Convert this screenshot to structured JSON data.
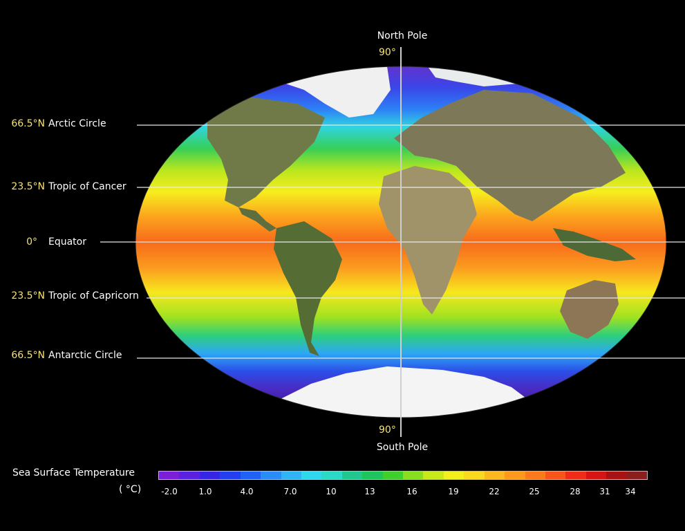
{
  "poles": {
    "north_label": "North Pole",
    "north_degree": "90°",
    "south_label": "South Pole",
    "south_degree": "90°"
  },
  "latitudes": [
    {
      "value": "66.5°N",
      "name": "Arctic Circle"
    },
    {
      "value": "23.5°N",
      "name": "Tropic of Cancer"
    },
    {
      "value": "0°",
      "name": "Equator"
    },
    {
      "value": "23.5°N",
      "name": "Tropic of Capricorn"
    },
    {
      "value": "66.5°N",
      "name": "Antarctic Circle"
    }
  ],
  "legend": {
    "title": "Sea Surface Temperature",
    "unit": "( °C)",
    "ticks": [
      "-2.0",
      "1.0",
      "4.0",
      "7.0",
      "10",
      "13",
      "16",
      "19",
      "22",
      "25",
      "28",
      "31",
      "34"
    ],
    "colors": [
      "#7a1fd6",
      "#5a22e0",
      "#3526e6",
      "#2340f0",
      "#1f62f5",
      "#2a8cf8",
      "#30b4f5",
      "#30d8ef",
      "#2ad9c6",
      "#20c890",
      "#1ec45c",
      "#3ecf2c",
      "#88df20",
      "#c6ea1c",
      "#f2f11e",
      "#fbd920",
      "#fdb820",
      "#fd9a1e",
      "#fb7a1c",
      "#f6561a",
      "#ee2c18",
      "#d61414",
      "#a81212",
      "#8a1e1e"
    ]
  },
  "colors": {
    "background": "#000000",
    "latitude_value": "#f5e27a",
    "ice": "#f2f2f2",
    "land": "#6f7a4a"
  }
}
